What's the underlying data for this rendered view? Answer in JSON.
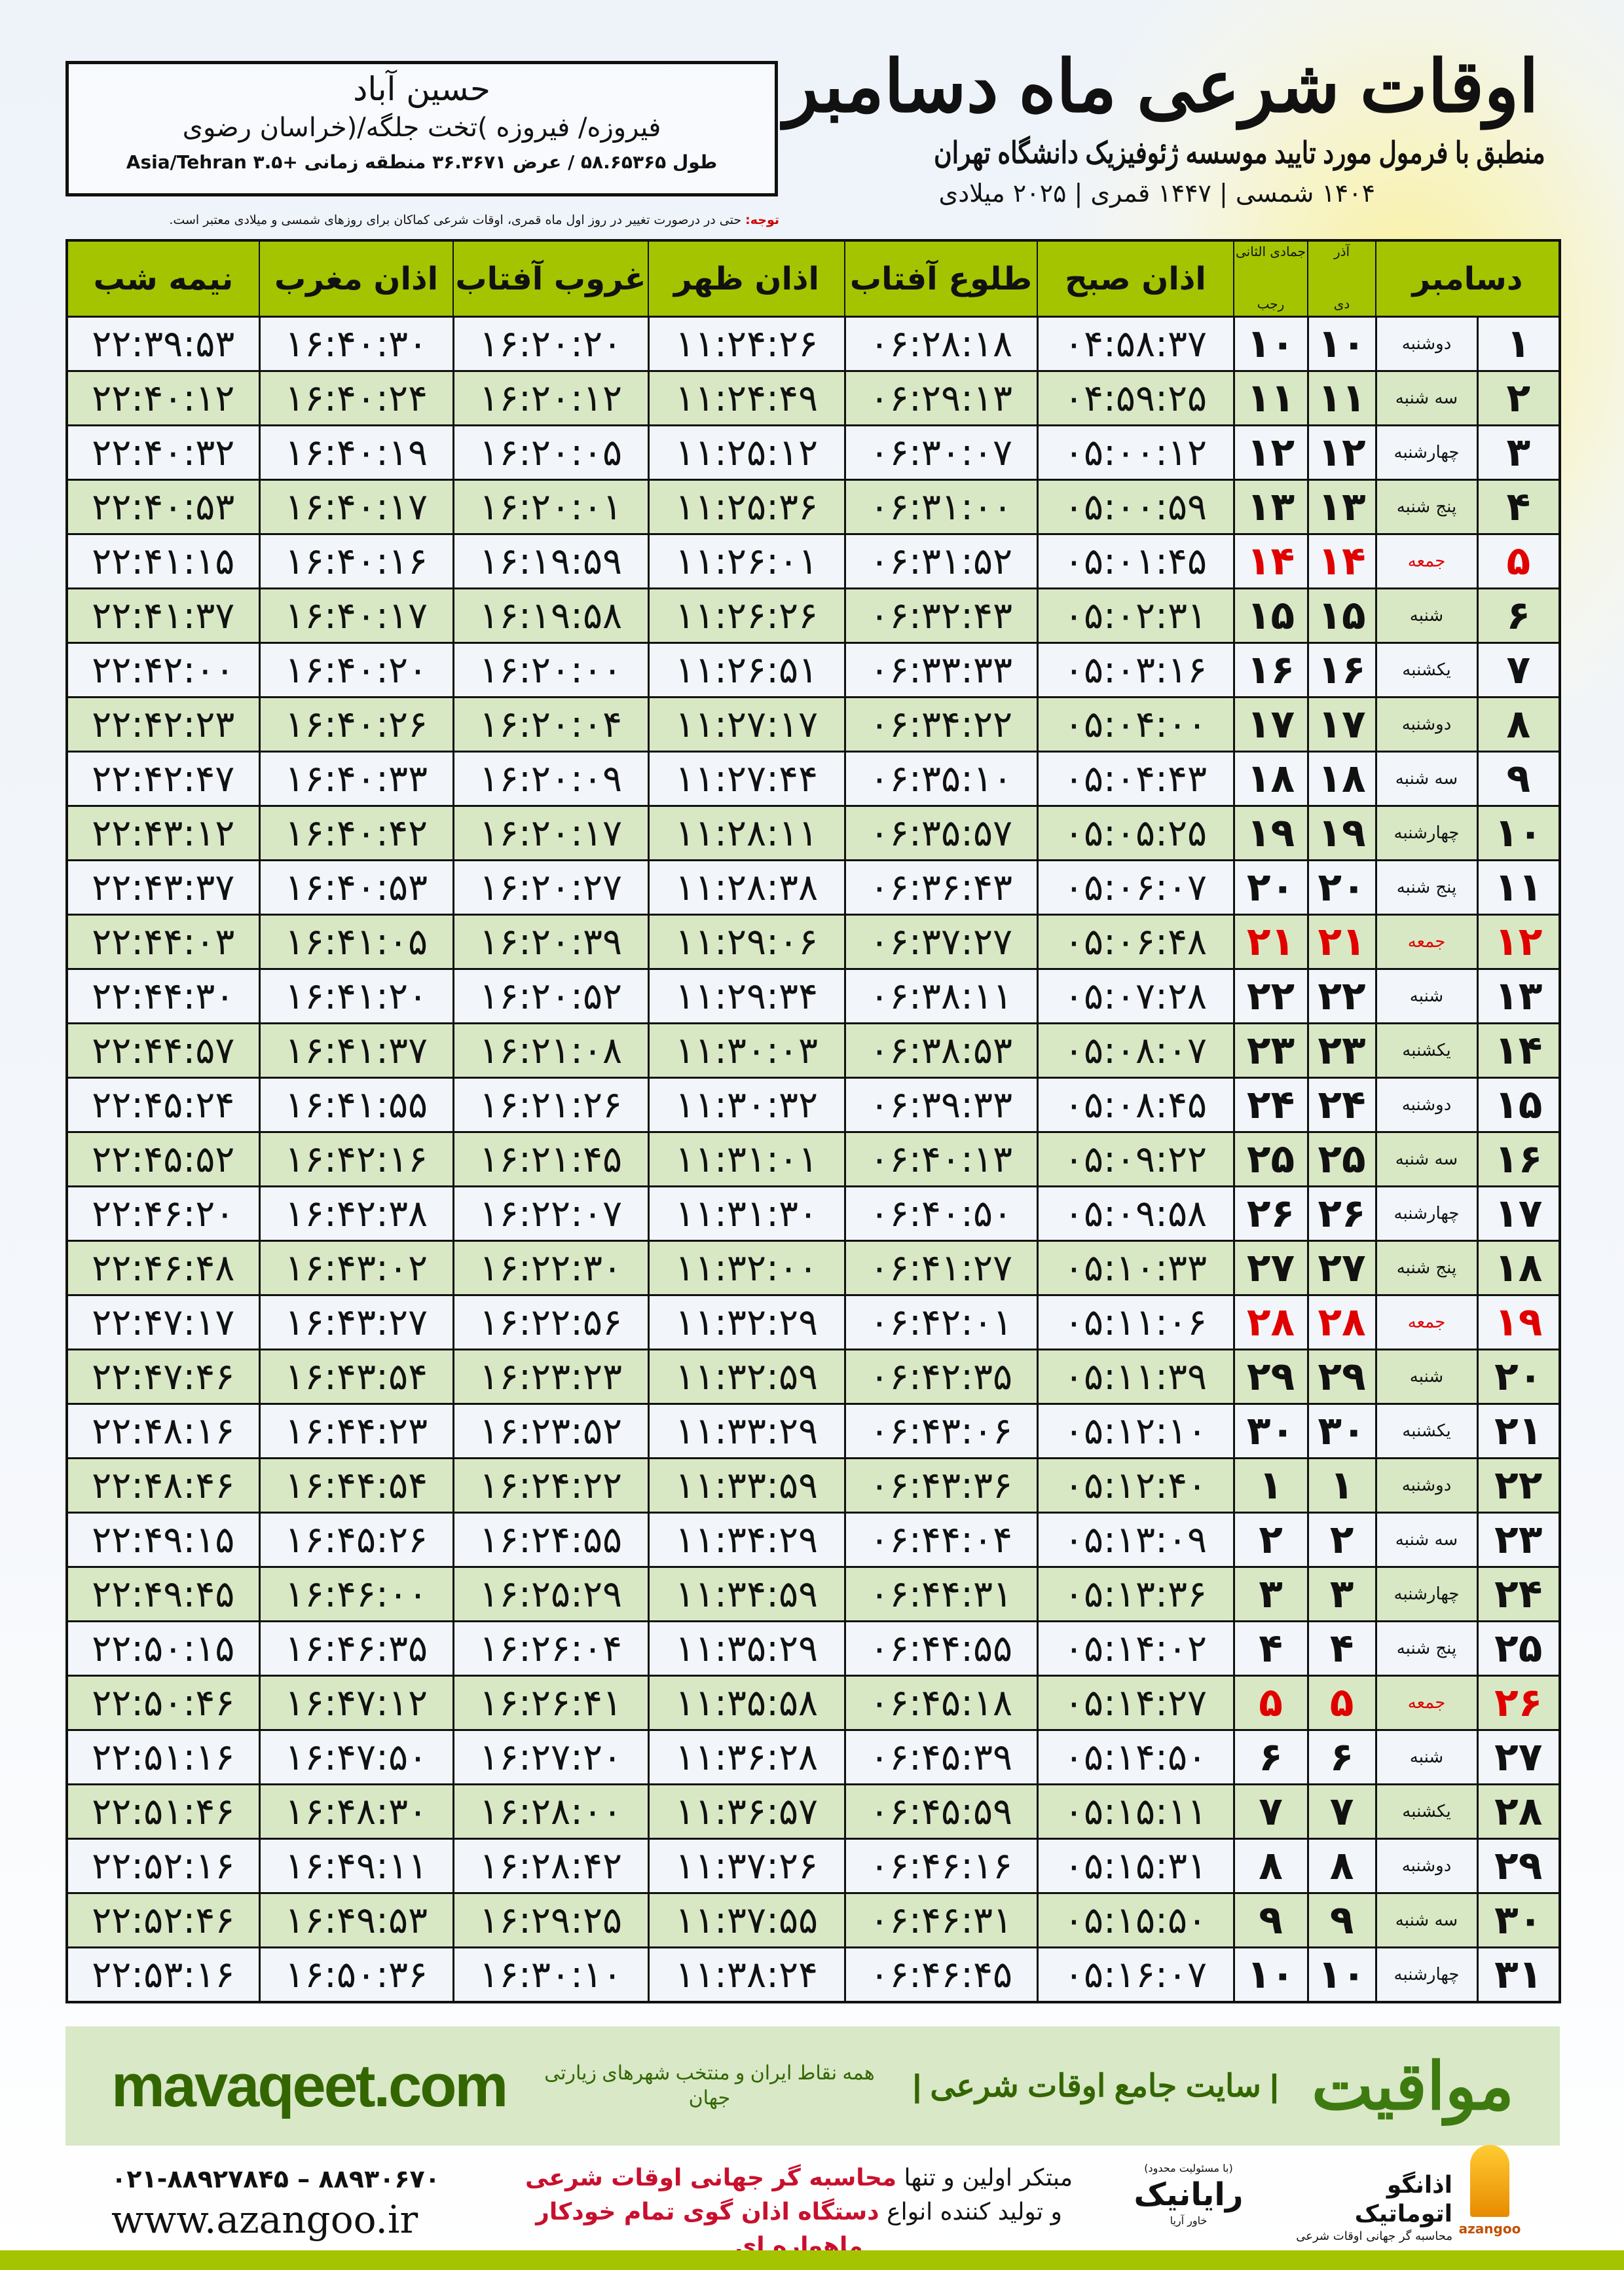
{
  "header": {
    "title": "اوقات شرعی ماه دسامبر",
    "subtitle": "منطبق با فرمول مورد تایید موسسه ژئوفیزیک دانشگاه تهران",
    "dates": "۱۴۰۴ شمسی | ۱۴۴۷ قمری | ۲۰۲۵ میلادی"
  },
  "location": {
    "city": "حسین آباد",
    "province": "فیروزه/ فیروزه )تخت جلگه/(خراسان رضوی",
    "coords": "طول ۵۸.۶۵۳۶۵ / عرض ۳۶.۳۶۷۱ منطقه زمانی +۳.۵ Asia/Tehran"
  },
  "note": {
    "label": "توجه:",
    "text": " حتی در درصورت تغییر در روز اول ماه قمری، اوقات شرعی کماکان برای روزهای شمسی و میلادی معتبر است."
  },
  "table": {
    "headers": {
      "month": "دسامبر",
      "solar_top": "آذر",
      "solar_bottom": "دی",
      "lunar_top": "جمادی الثانی",
      "lunar_bottom": "رجب",
      "fajr": "اذان صبح",
      "sunrise": "طلوع آفتاب",
      "dhuhr": "اذان ظهر",
      "sunset": "غروب آفتاب",
      "maghrib": "اذان مغرب",
      "midnight": "نیمه شب"
    },
    "friday_color": "#e00000",
    "header_color": "#a4c400",
    "rows": [
      {
        "day": "۱",
        "weekday": "دوشنبه",
        "solar": "۱۰",
        "lunar": "۱۰",
        "fajr": "۰۴:۵۸:۳۷",
        "sunrise": "۰۶:۲۸:۱۸",
        "dhuhr": "۱۱:۲۴:۲۶",
        "sunset": "۱۶:۲۰:۲۰",
        "maghrib": "۱۶:۴۰:۳۰",
        "midnight": "۲۲:۳۹:۵۳",
        "friday": false
      },
      {
        "day": "۲",
        "weekday": "سه شنبه",
        "solar": "۱۱",
        "lunar": "۱۱",
        "fajr": "۰۴:۵۹:۲۵",
        "sunrise": "۰۶:۲۹:۱۳",
        "dhuhr": "۱۱:۲۴:۴۹",
        "sunset": "۱۶:۲۰:۱۲",
        "maghrib": "۱۶:۴۰:۲۴",
        "midnight": "۲۲:۴۰:۱۲",
        "friday": false
      },
      {
        "day": "۳",
        "weekday": "چهارشنبه",
        "solar": "۱۲",
        "lunar": "۱۲",
        "fajr": "۰۵:۰۰:۱۲",
        "sunrise": "۰۶:۳۰:۰۷",
        "dhuhr": "۱۱:۲۵:۱۲",
        "sunset": "۱۶:۲۰:۰۵",
        "maghrib": "۱۶:۴۰:۱۹",
        "midnight": "۲۲:۴۰:۳۲",
        "friday": false
      },
      {
        "day": "۴",
        "weekday": "پنج شنبه",
        "solar": "۱۳",
        "lunar": "۱۳",
        "fajr": "۰۵:۰۰:۵۹",
        "sunrise": "۰۶:۳۱:۰۰",
        "dhuhr": "۱۱:۲۵:۳۶",
        "sunset": "۱۶:۲۰:۰۱",
        "maghrib": "۱۶:۴۰:۱۷",
        "midnight": "۲۲:۴۰:۵۳",
        "friday": false
      },
      {
        "day": "۵",
        "weekday": "جمعه",
        "solar": "۱۴",
        "lunar": "۱۴",
        "fajr": "۰۵:۰۱:۴۵",
        "sunrise": "۰۶:۳۱:۵۲",
        "dhuhr": "۱۱:۲۶:۰۱",
        "sunset": "۱۶:۱۹:۵۹",
        "maghrib": "۱۶:۴۰:۱۶",
        "midnight": "۲۲:۴۱:۱۵",
        "friday": true
      },
      {
        "day": "۶",
        "weekday": "شنبه",
        "solar": "۱۵",
        "lunar": "۱۵",
        "fajr": "۰۵:۰۲:۳۱",
        "sunrise": "۰۶:۳۲:۴۳",
        "dhuhr": "۱۱:۲۶:۲۶",
        "sunset": "۱۶:۱۹:۵۸",
        "maghrib": "۱۶:۴۰:۱۷",
        "midnight": "۲۲:۴۱:۳۷",
        "friday": false
      },
      {
        "day": "۷",
        "weekday": "یکشنبه",
        "solar": "۱۶",
        "lunar": "۱۶",
        "fajr": "۰۵:۰۳:۱۶",
        "sunrise": "۰۶:۳۳:۳۳",
        "dhuhr": "۱۱:۲۶:۵۱",
        "sunset": "۱۶:۲۰:۰۰",
        "maghrib": "۱۶:۴۰:۲۰",
        "midnight": "۲۲:۴۲:۰۰",
        "friday": false
      },
      {
        "day": "۸",
        "weekday": "دوشنبه",
        "solar": "۱۷",
        "lunar": "۱۷",
        "fajr": "۰۵:۰۴:۰۰",
        "sunrise": "۰۶:۳۴:۲۲",
        "dhuhr": "۱۱:۲۷:۱۷",
        "sunset": "۱۶:۲۰:۰۴",
        "maghrib": "۱۶:۴۰:۲۶",
        "midnight": "۲۲:۴۲:۲۳",
        "friday": false
      },
      {
        "day": "۹",
        "weekday": "سه شنبه",
        "solar": "۱۸",
        "lunar": "۱۸",
        "fajr": "۰۵:۰۴:۴۳",
        "sunrise": "۰۶:۳۵:۱۰",
        "dhuhr": "۱۱:۲۷:۴۴",
        "sunset": "۱۶:۲۰:۰۹",
        "maghrib": "۱۶:۴۰:۳۳",
        "midnight": "۲۲:۴۲:۴۷",
        "friday": false
      },
      {
        "day": "۱۰",
        "weekday": "چهارشنبه",
        "solar": "۱۹",
        "lunar": "۱۹",
        "fajr": "۰۵:۰۵:۲۵",
        "sunrise": "۰۶:۳۵:۵۷",
        "dhuhr": "۱۱:۲۸:۱۱",
        "sunset": "۱۶:۲۰:۱۷",
        "maghrib": "۱۶:۴۰:۴۲",
        "midnight": "۲۲:۴۳:۱۲",
        "friday": false
      },
      {
        "day": "۱۱",
        "weekday": "پنج شنبه",
        "solar": "۲۰",
        "lunar": "۲۰",
        "fajr": "۰۵:۰۶:۰۷",
        "sunrise": "۰۶:۳۶:۴۳",
        "dhuhr": "۱۱:۲۸:۳۸",
        "sunset": "۱۶:۲۰:۲۷",
        "maghrib": "۱۶:۴۰:۵۳",
        "midnight": "۲۲:۴۳:۳۷",
        "friday": false
      },
      {
        "day": "۱۲",
        "weekday": "جمعه",
        "solar": "۲۱",
        "lunar": "۲۱",
        "fajr": "۰۵:۰۶:۴۸",
        "sunrise": "۰۶:۳۷:۲۷",
        "dhuhr": "۱۱:۲۹:۰۶",
        "sunset": "۱۶:۲۰:۳۹",
        "maghrib": "۱۶:۴۱:۰۵",
        "midnight": "۲۲:۴۴:۰۳",
        "friday": true
      },
      {
        "day": "۱۳",
        "weekday": "شنبه",
        "solar": "۲۲",
        "lunar": "۲۲",
        "fajr": "۰۵:۰۷:۲۸",
        "sunrise": "۰۶:۳۸:۱۱",
        "dhuhr": "۱۱:۲۹:۳۴",
        "sunset": "۱۶:۲۰:۵۲",
        "maghrib": "۱۶:۴۱:۲۰",
        "midnight": "۲۲:۴۴:۳۰",
        "friday": false
      },
      {
        "day": "۱۴",
        "weekday": "یکشنبه",
        "solar": "۲۳",
        "lunar": "۲۳",
        "fajr": "۰۵:۰۸:۰۷",
        "sunrise": "۰۶:۳۸:۵۳",
        "dhuhr": "۱۱:۳۰:۰۳",
        "sunset": "۱۶:۲۱:۰۸",
        "maghrib": "۱۶:۴۱:۳۷",
        "midnight": "۲۲:۴۴:۵۷",
        "friday": false
      },
      {
        "day": "۱۵",
        "weekday": "دوشنبه",
        "solar": "۲۴",
        "lunar": "۲۴",
        "fajr": "۰۵:۰۸:۴۵",
        "sunrise": "۰۶:۳۹:۳۳",
        "dhuhr": "۱۱:۳۰:۳۲",
        "sunset": "۱۶:۲۱:۲۶",
        "maghrib": "۱۶:۴۱:۵۵",
        "midnight": "۲۲:۴۵:۲۴",
        "friday": false
      },
      {
        "day": "۱۶",
        "weekday": "سه شنبه",
        "solar": "۲۵",
        "lunar": "۲۵",
        "fajr": "۰۵:۰۹:۲۲",
        "sunrise": "۰۶:۴۰:۱۳",
        "dhuhr": "۱۱:۳۱:۰۱",
        "sunset": "۱۶:۲۱:۴۵",
        "maghrib": "۱۶:۴۲:۱۶",
        "midnight": "۲۲:۴۵:۵۲",
        "friday": false
      },
      {
        "day": "۱۷",
        "weekday": "چهارشنبه",
        "solar": "۲۶",
        "lunar": "۲۶",
        "fajr": "۰۵:۰۹:۵۸",
        "sunrise": "۰۶:۴۰:۵۰",
        "dhuhr": "۱۱:۳۱:۳۰",
        "sunset": "۱۶:۲۲:۰۷",
        "maghrib": "۱۶:۴۲:۳۸",
        "midnight": "۲۲:۴۶:۲۰",
        "friday": false
      },
      {
        "day": "۱۸",
        "weekday": "پنج شنبه",
        "solar": "۲۷",
        "lunar": "۲۷",
        "fajr": "۰۵:۱۰:۳۳",
        "sunrise": "۰۶:۴۱:۲۷",
        "dhuhr": "۱۱:۳۲:۰۰",
        "sunset": "۱۶:۲۲:۳۰",
        "maghrib": "۱۶:۴۳:۰۲",
        "midnight": "۲۲:۴۶:۴۸",
        "friday": false
      },
      {
        "day": "۱۹",
        "weekday": "جمعه",
        "solar": "۲۸",
        "lunar": "۲۸",
        "fajr": "۰۵:۱۱:۰۶",
        "sunrise": "۰۶:۴۲:۰۱",
        "dhuhr": "۱۱:۳۲:۲۹",
        "sunset": "۱۶:۲۲:۵۶",
        "maghrib": "۱۶:۴۳:۲۷",
        "midnight": "۲۲:۴۷:۱۷",
        "friday": true
      },
      {
        "day": "۲۰",
        "weekday": "شنبه",
        "solar": "۲۹",
        "lunar": "۲۹",
        "fajr": "۰۵:۱۱:۳۹",
        "sunrise": "۰۶:۴۲:۳۵",
        "dhuhr": "۱۱:۳۲:۵۹",
        "sunset": "۱۶:۲۳:۲۳",
        "maghrib": "۱۶:۴۳:۵۴",
        "midnight": "۲۲:۴۷:۴۶",
        "friday": false
      },
      {
        "day": "۲۱",
        "weekday": "یکشنبه",
        "solar": "۳۰",
        "lunar": "۳۰",
        "fajr": "۰۵:۱۲:۱۰",
        "sunrise": "۰۶:۴۳:۰۶",
        "dhuhr": "۱۱:۳۳:۲۹",
        "sunset": "۱۶:۲۳:۵۲",
        "maghrib": "۱۶:۴۴:۲۳",
        "midnight": "۲۲:۴۸:۱۶",
        "friday": false
      },
      {
        "day": "۲۲",
        "weekday": "دوشنبه",
        "solar": "۱",
        "lunar": "۱",
        "fajr": "۰۵:۱۲:۴۰",
        "sunrise": "۰۶:۴۳:۳۶",
        "dhuhr": "۱۱:۳۳:۵۹",
        "sunset": "۱۶:۲۴:۲۲",
        "maghrib": "۱۶:۴۴:۵۴",
        "midnight": "۲۲:۴۸:۴۶",
        "friday": false
      },
      {
        "day": "۲۳",
        "weekday": "سه شنبه",
        "solar": "۲",
        "lunar": "۲",
        "fajr": "۰۵:۱۳:۰۹",
        "sunrise": "۰۶:۴۴:۰۴",
        "dhuhr": "۱۱:۳۴:۲۹",
        "sunset": "۱۶:۲۴:۵۵",
        "maghrib": "۱۶:۴۵:۲۶",
        "midnight": "۲۲:۴۹:۱۵",
        "friday": false
      },
      {
        "day": "۲۴",
        "weekday": "چهارشنبه",
        "solar": "۳",
        "lunar": "۳",
        "fajr": "۰۵:۱۳:۳۶",
        "sunrise": "۰۶:۴۴:۳۱",
        "dhuhr": "۱۱:۳۴:۵۹",
        "sunset": "۱۶:۲۵:۲۹",
        "maghrib": "۱۶:۴۶:۰۰",
        "midnight": "۲۲:۴۹:۴۵",
        "friday": false
      },
      {
        "day": "۲۵",
        "weekday": "پنج شنبه",
        "solar": "۴",
        "lunar": "۴",
        "fajr": "۰۵:۱۴:۰۲",
        "sunrise": "۰۶:۴۴:۵۵",
        "dhuhr": "۱۱:۳۵:۲۹",
        "sunset": "۱۶:۲۶:۰۴",
        "maghrib": "۱۶:۴۶:۳۵",
        "midnight": "۲۲:۵۰:۱۵",
        "friday": false
      },
      {
        "day": "۲۶",
        "weekday": "جمعه",
        "solar": "۵",
        "lunar": "۵",
        "fajr": "۰۵:۱۴:۲۷",
        "sunrise": "۰۶:۴۵:۱۸",
        "dhuhr": "۱۱:۳۵:۵۸",
        "sunset": "۱۶:۲۶:۴۱",
        "maghrib": "۱۶:۴۷:۱۲",
        "midnight": "۲۲:۵۰:۴۶",
        "friday": true
      },
      {
        "day": "۲۷",
        "weekday": "شنبه",
        "solar": "۶",
        "lunar": "۶",
        "fajr": "۰۵:۱۴:۵۰",
        "sunrise": "۰۶:۴۵:۳۹",
        "dhuhr": "۱۱:۳۶:۲۸",
        "sunset": "۱۶:۲۷:۲۰",
        "maghrib": "۱۶:۴۷:۵۰",
        "midnight": "۲۲:۵۱:۱۶",
        "friday": false
      },
      {
        "day": "۲۸",
        "weekday": "یکشنبه",
        "solar": "۷",
        "lunar": "۷",
        "fajr": "۰۵:۱۵:۱۱",
        "sunrise": "۰۶:۴۵:۵۹",
        "dhuhr": "۱۱:۳۶:۵۷",
        "sunset": "۱۶:۲۸:۰۰",
        "maghrib": "۱۶:۴۸:۳۰",
        "midnight": "۲۲:۵۱:۴۶",
        "friday": false
      },
      {
        "day": "۲۹",
        "weekday": "دوشنبه",
        "solar": "۸",
        "lunar": "۸",
        "fajr": "۰۵:۱۵:۳۱",
        "sunrise": "۰۶:۴۶:۱۶",
        "dhuhr": "۱۱:۳۷:۲۶",
        "sunset": "۱۶:۲۸:۴۲",
        "maghrib": "۱۶:۴۹:۱۱",
        "midnight": "۲۲:۵۲:۱۶",
        "friday": false
      },
      {
        "day": "۳۰",
        "weekday": "سه شنبه",
        "solar": "۹",
        "lunar": "۹",
        "fajr": "۰۵:۱۵:۵۰",
        "sunrise": "۰۶:۴۶:۳۱",
        "dhuhr": "۱۱:۳۷:۵۵",
        "sunset": "۱۶:۲۹:۲۵",
        "maghrib": "۱۶:۴۹:۵۳",
        "midnight": "۲۲:۵۲:۴۶",
        "friday": false
      },
      {
        "day": "۳۱",
        "weekday": "چهارشنبه",
        "solar": "۱۰",
        "lunar": "۱۰",
        "fajr": "۰۵:۱۶:۰۷",
        "sunrise": "۰۶:۴۶:۴۵",
        "dhuhr": "۱۱:۳۸:۲۴",
        "sunset": "۱۶:۳۰:۱۰",
        "maghrib": "۱۶:۵۰:۳۶",
        "midnight": "۲۲:۵۳:۱۶",
        "friday": false
      }
    ]
  },
  "footer": {
    "brand": "مواقیت",
    "slogan": "| سایت جامع اوقات شرعی |",
    "slogan_sub": "همه نقاط ایران و منتخب شهرهای زیارتی جهان",
    "site": "mavaqeet.com",
    "phone": "۰۲۱-۸۸۹۲۷۸۴۵ – ۸۸۹۳۰۶۷۰",
    "web": "www.azangoo.ir",
    "promo_line1_a": "مبتکر اولین و تنها ",
    "promo_line1_b": "محاسبه گر جهانی اوقات شرعی",
    "promo_line2_a": "و تولید کننده انواع ",
    "promo_line2_b": "دستگاه اذان گوی تمام خودکار ماهواره ای",
    "rayanik_note": "(با مسئولیت محدود)",
    "rayanik": "رایانیک",
    "rayanik_sub": "خاور آریا",
    "azangoo": "اذانگو اتوماتیک",
    "azangoo_sub": "محاسبه گر جهانی اوقات شرعی",
    "azangoo_en": "azangoo"
  }
}
